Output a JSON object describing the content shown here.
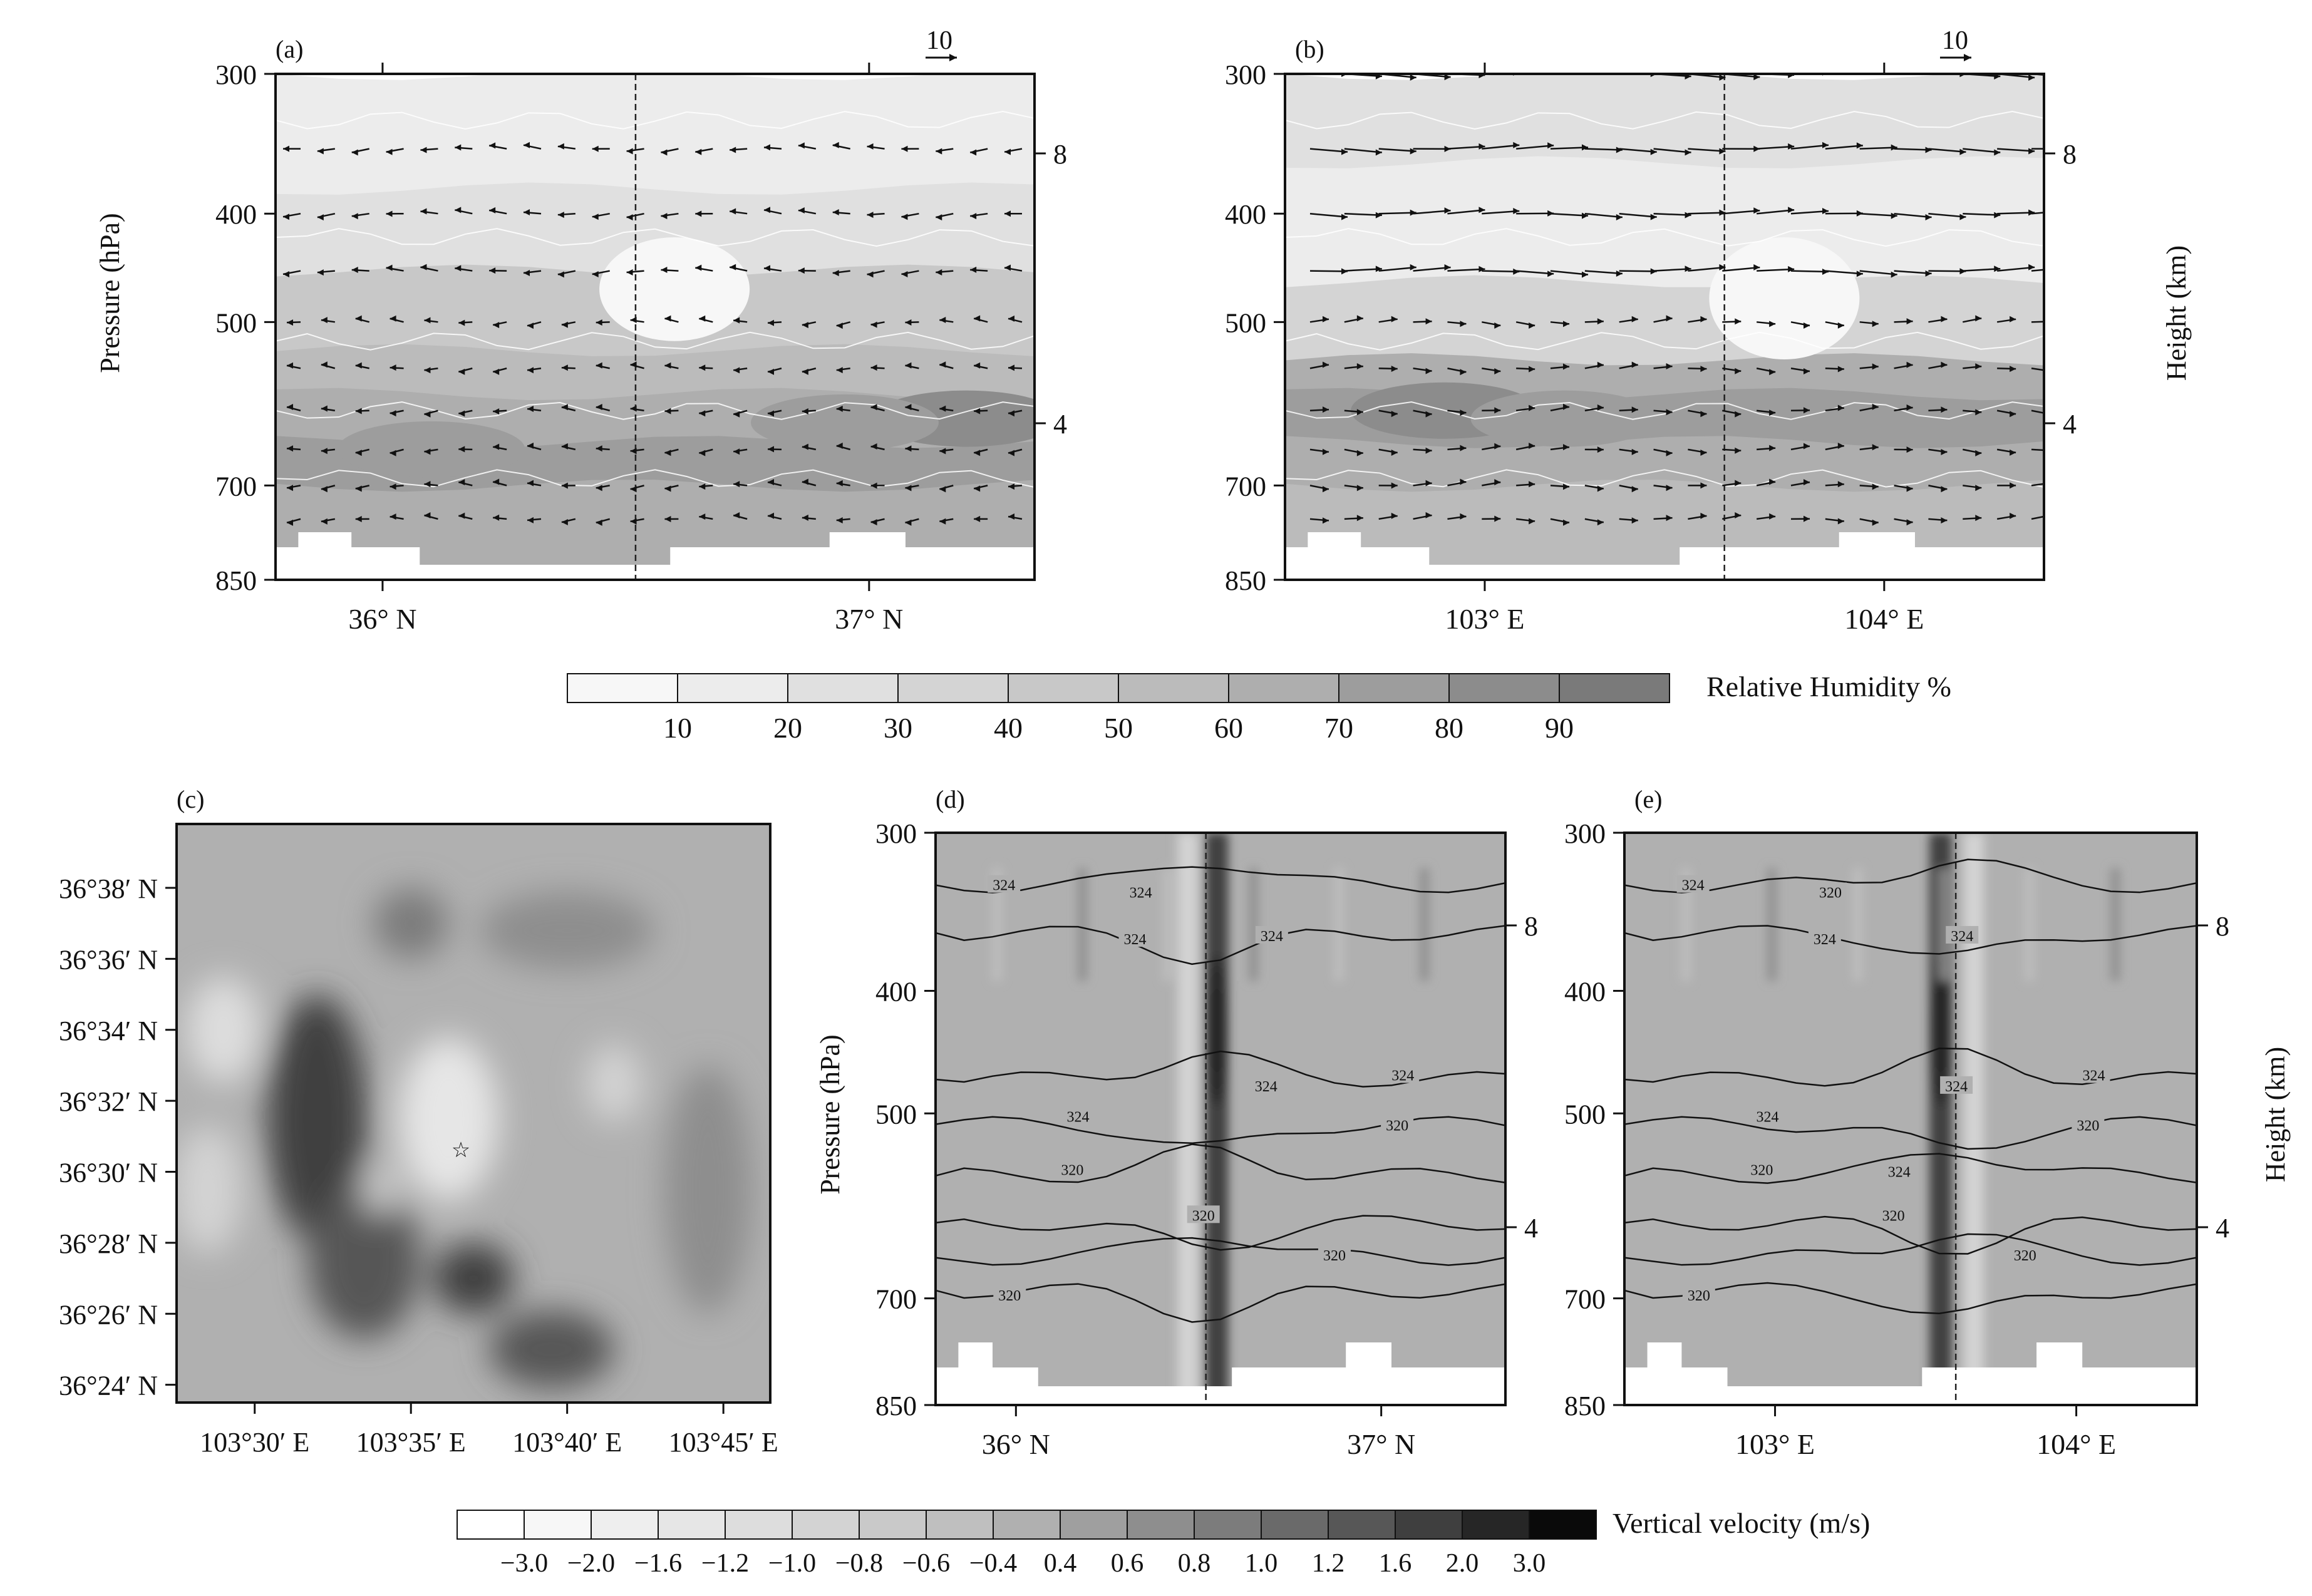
{
  "colors": {
    "frame": "#111111",
    "wind_vector": "#111111",
    "rh_contour": "#ffffff",
    "theta_contour": "#111111",
    "background": "#ffffff"
  },
  "icons": {
    "storm_marker": "star-icon"
  },
  "colorbars": {
    "relative_humidity": {
      "label": "Relative Humidity %",
      "ticks": [
        "10",
        "20",
        "30",
        "40",
        "50",
        "60",
        "70",
        "80",
        "90"
      ],
      "colors": [
        "#f7f7f7",
        "#ececec",
        "#e0e0e0",
        "#d4d4d4",
        "#c8c8c8",
        "#bbbbbb",
        "#aeaeae",
        "#9d9d9d",
        "#8c8c8c",
        "#7a7a7a"
      ]
    },
    "vertical_velocity": {
      "label": "Vertical velocity (m/s)",
      "ticks": [
        "−3.0",
        "−2.0",
        "−1.6",
        "−1.2",
        "−1.0",
        "−0.8",
        "−0.6",
        "−0.4",
        "0.4",
        "0.6",
        "0.8",
        "1.0",
        "1.2",
        "1.6",
        "2.0",
        "3.0"
      ],
      "colors": [
        "#ffffff",
        "#f7f7f7",
        "#eeeeee",
        "#e6e6e6",
        "#dddddd",
        "#d3d3d3",
        "#c9c9c9",
        "#bfbfbf",
        "#b0b0b0",
        "#9f9f9f",
        "#8e8e8e",
        "#7c7c7c",
        "#6a6a6a",
        "#575757",
        "#3f3f3f",
        "#262626",
        "#0a0a0a"
      ]
    }
  },
  "chart_data": [
    {
      "panel": "(a)",
      "type": "heatmap",
      "field": "relative_humidity",
      "ylabel": "Pressure (hPa)",
      "yticks": [
        "300",
        "400",
        "500",
        "700",
        "850"
      ],
      "xticks": [
        "36° N",
        "37° N"
      ],
      "xrange": [
        35.78,
        37.34
      ],
      "yrange_hPa": [
        850,
        300
      ],
      "height_ticks_km": [
        "8",
        "4"
      ],
      "reference_vector": "10",
      "dashed_line_x": 36.52,
      "rh_layers": [
        {
          "top_hPa": 300,
          "value": 15
        },
        {
          "top_hPa": 380,
          "value": 25
        },
        {
          "top_hPa": 450,
          "value": 40
        },
        {
          "top_hPa": 530,
          "value": 55
        },
        {
          "top_hPa": 580,
          "value": 65
        },
        {
          "top_hPa": 640,
          "value": 72
        },
        {
          "top_hPa": 700,
          "value": 65
        }
      ],
      "moist_cores": [
        {
          "x": 37.2,
          "p": 610,
          "value": 85
        },
        {
          "x": 36.95,
          "p": 615,
          "value": 78
        },
        {
          "x": 36.1,
          "p": 650,
          "value": 72
        }
      ],
      "dry_slot": {
        "x": 36.6,
        "p_top": 420,
        "p_bottom": 520,
        "value": 5
      },
      "vectors": {
        "direction": "west",
        "levels_hPa": [
          350,
          400,
          450,
          500,
          550,
          600,
          650,
          700,
          750
        ]
      }
    },
    {
      "panel": "(b)",
      "type": "heatmap",
      "field": "relative_humidity",
      "ylabel": "Height (km)",
      "yticks": [
        "300",
        "400",
        "500",
        "700",
        "850"
      ],
      "xticks": [
        "103° E",
        "104° E"
      ],
      "xrange": [
        102.5,
        104.4
      ],
      "yrange_hPa": [
        850,
        300
      ],
      "height_ticks_km": [
        "8",
        "4"
      ],
      "reference_vector": "10",
      "dashed_line_x": 103.6,
      "rh_layers": [
        {
          "top_hPa": 300,
          "value": 25
        },
        {
          "top_hPa": 360,
          "value": 15
        },
        {
          "top_hPa": 460,
          "value": 35
        },
        {
          "top_hPa": 540,
          "value": 60
        },
        {
          "top_hPa": 580,
          "value": 72
        },
        {
          "top_hPa": 640,
          "value": 65
        },
        {
          "top_hPa": 700,
          "value": 55
        }
      ],
      "moist_cores": [
        {
          "x": 102.9,
          "p": 600,
          "value": 80
        },
        {
          "x": 103.2,
          "p": 610,
          "value": 75
        }
      ],
      "dry_slot": {
        "x": 103.75,
        "p_top": 420,
        "p_bottom": 540,
        "value": 5
      },
      "vectors": {
        "direction": "east",
        "levels_hPa": [
          300,
          350,
          400,
          450,
          500,
          550,
          600,
          650,
          700,
          750
        ]
      }
    },
    {
      "panel": "(c)",
      "type": "heatmap",
      "field": "vertical_velocity",
      "yticks": [
        "36°38′ N",
        "36°36′ N",
        "36°34′ N",
        "36°32′ N",
        "36°30′ N",
        "36°28′ N",
        "36°26′ N",
        "36°24′ N"
      ],
      "ytick_values_min": [
        38,
        36,
        34,
        32,
        30,
        28,
        26,
        24
      ],
      "xticks": [
        "103°30′ E",
        "103°35′ E",
        "103°40′ E",
        "103°45′ E"
      ],
      "xtick_values_min": [
        30,
        35,
        40,
        45
      ],
      "xrange_min": [
        27.5,
        46.5
      ],
      "yrange_min": [
        23.5,
        39.8
      ],
      "star": {
        "lon_min": 36.6,
        "lat_min": 30.6
      },
      "cells": [
        {
          "x": 32.0,
          "y": 31.5,
          "rx": 1.6,
          "ry": 3.5,
          "value": 1.8
        },
        {
          "x": 33.5,
          "y": 27.5,
          "rx": 1.8,
          "ry": 2.2,
          "value": 1.5
        },
        {
          "x": 37.0,
          "y": 27.0,
          "rx": 1.3,
          "ry": 1.0,
          "value": 1.6
        },
        {
          "x": 39.5,
          "y": 25.0,
          "rx": 2.0,
          "ry": 1.1,
          "value": 1.5
        },
        {
          "x": 36.2,
          "y": 31.5,
          "rx": 1.6,
          "ry": 2.3,
          "value": -1.6
        },
        {
          "x": 29.0,
          "y": 34.0,
          "rx": 1.2,
          "ry": 1.5,
          "value": -1.2
        },
        {
          "x": 28.5,
          "y": 29.5,
          "rx": 1.1,
          "ry": 1.8,
          "value": -1.0
        },
        {
          "x": 41.5,
          "y": 32.5,
          "rx": 0.9,
          "ry": 1.1,
          "value": -1.0
        },
        {
          "x": 34.0,
          "y": 29.5,
          "rx": 0.6,
          "ry": 0.7,
          "value": -0.8
        },
        {
          "x": 40.0,
          "y": 36.8,
          "rx": 2.8,
          "ry": 1.1,
          "value": 0.6
        },
        {
          "x": 44.5,
          "y": 29.5,
          "rx": 1.4,
          "ry": 3.5,
          "value": 0.6
        },
        {
          "x": 35.0,
          "y": 37.0,
          "rx": 1.2,
          "ry": 1.0,
          "value": 0.8
        }
      ]
    },
    {
      "panel": "(d)",
      "type": "heatmap",
      "field": "vertical_velocity",
      "ylabel": "Pressure (hPa)",
      "yticks": [
        "300",
        "400",
        "500",
        "700",
        "850"
      ],
      "xticks": [
        "36° N",
        "37° N"
      ],
      "xrange": [
        35.78,
        37.34
      ],
      "yrange_hPa": [
        850,
        300
      ],
      "height_ticks_km": [
        "8",
        "4"
      ],
      "dashed_line_x": 36.52,
      "updraft_core": {
        "x": 36.55,
        "value": 1.6
      },
      "downdraft_edge": {
        "x": 36.47,
        "value": -1.0
      },
      "isentrope_labels": [
        "324",
        "324",
        "324",
        "320",
        "320",
        "320",
        "320",
        "320",
        "324",
        "324",
        "324",
        "324"
      ]
    },
    {
      "panel": "(e)",
      "type": "heatmap",
      "field": "vertical_velocity",
      "ylabel": "Height (km)",
      "yticks": [
        "300",
        "400",
        "500",
        "700",
        "850"
      ],
      "xticks": [
        "103° E",
        "104° E"
      ],
      "xrange": [
        102.5,
        104.4
      ],
      "yrange_hPa": [
        850,
        300
      ],
      "height_ticks_km": [
        "8",
        "4"
      ],
      "dashed_line_x": 103.6,
      "updraft_core": {
        "x": 103.55,
        "value": 1.6
      },
      "downdraft_edge": {
        "x": 103.66,
        "value": -1.0
      },
      "isentrope_labels": [
        "324",
        "324",
        "324",
        "320",
        "320",
        "320",
        "320",
        "320",
        "320",
        "324",
        "324",
        "324",
        "324"
      ]
    }
  ]
}
